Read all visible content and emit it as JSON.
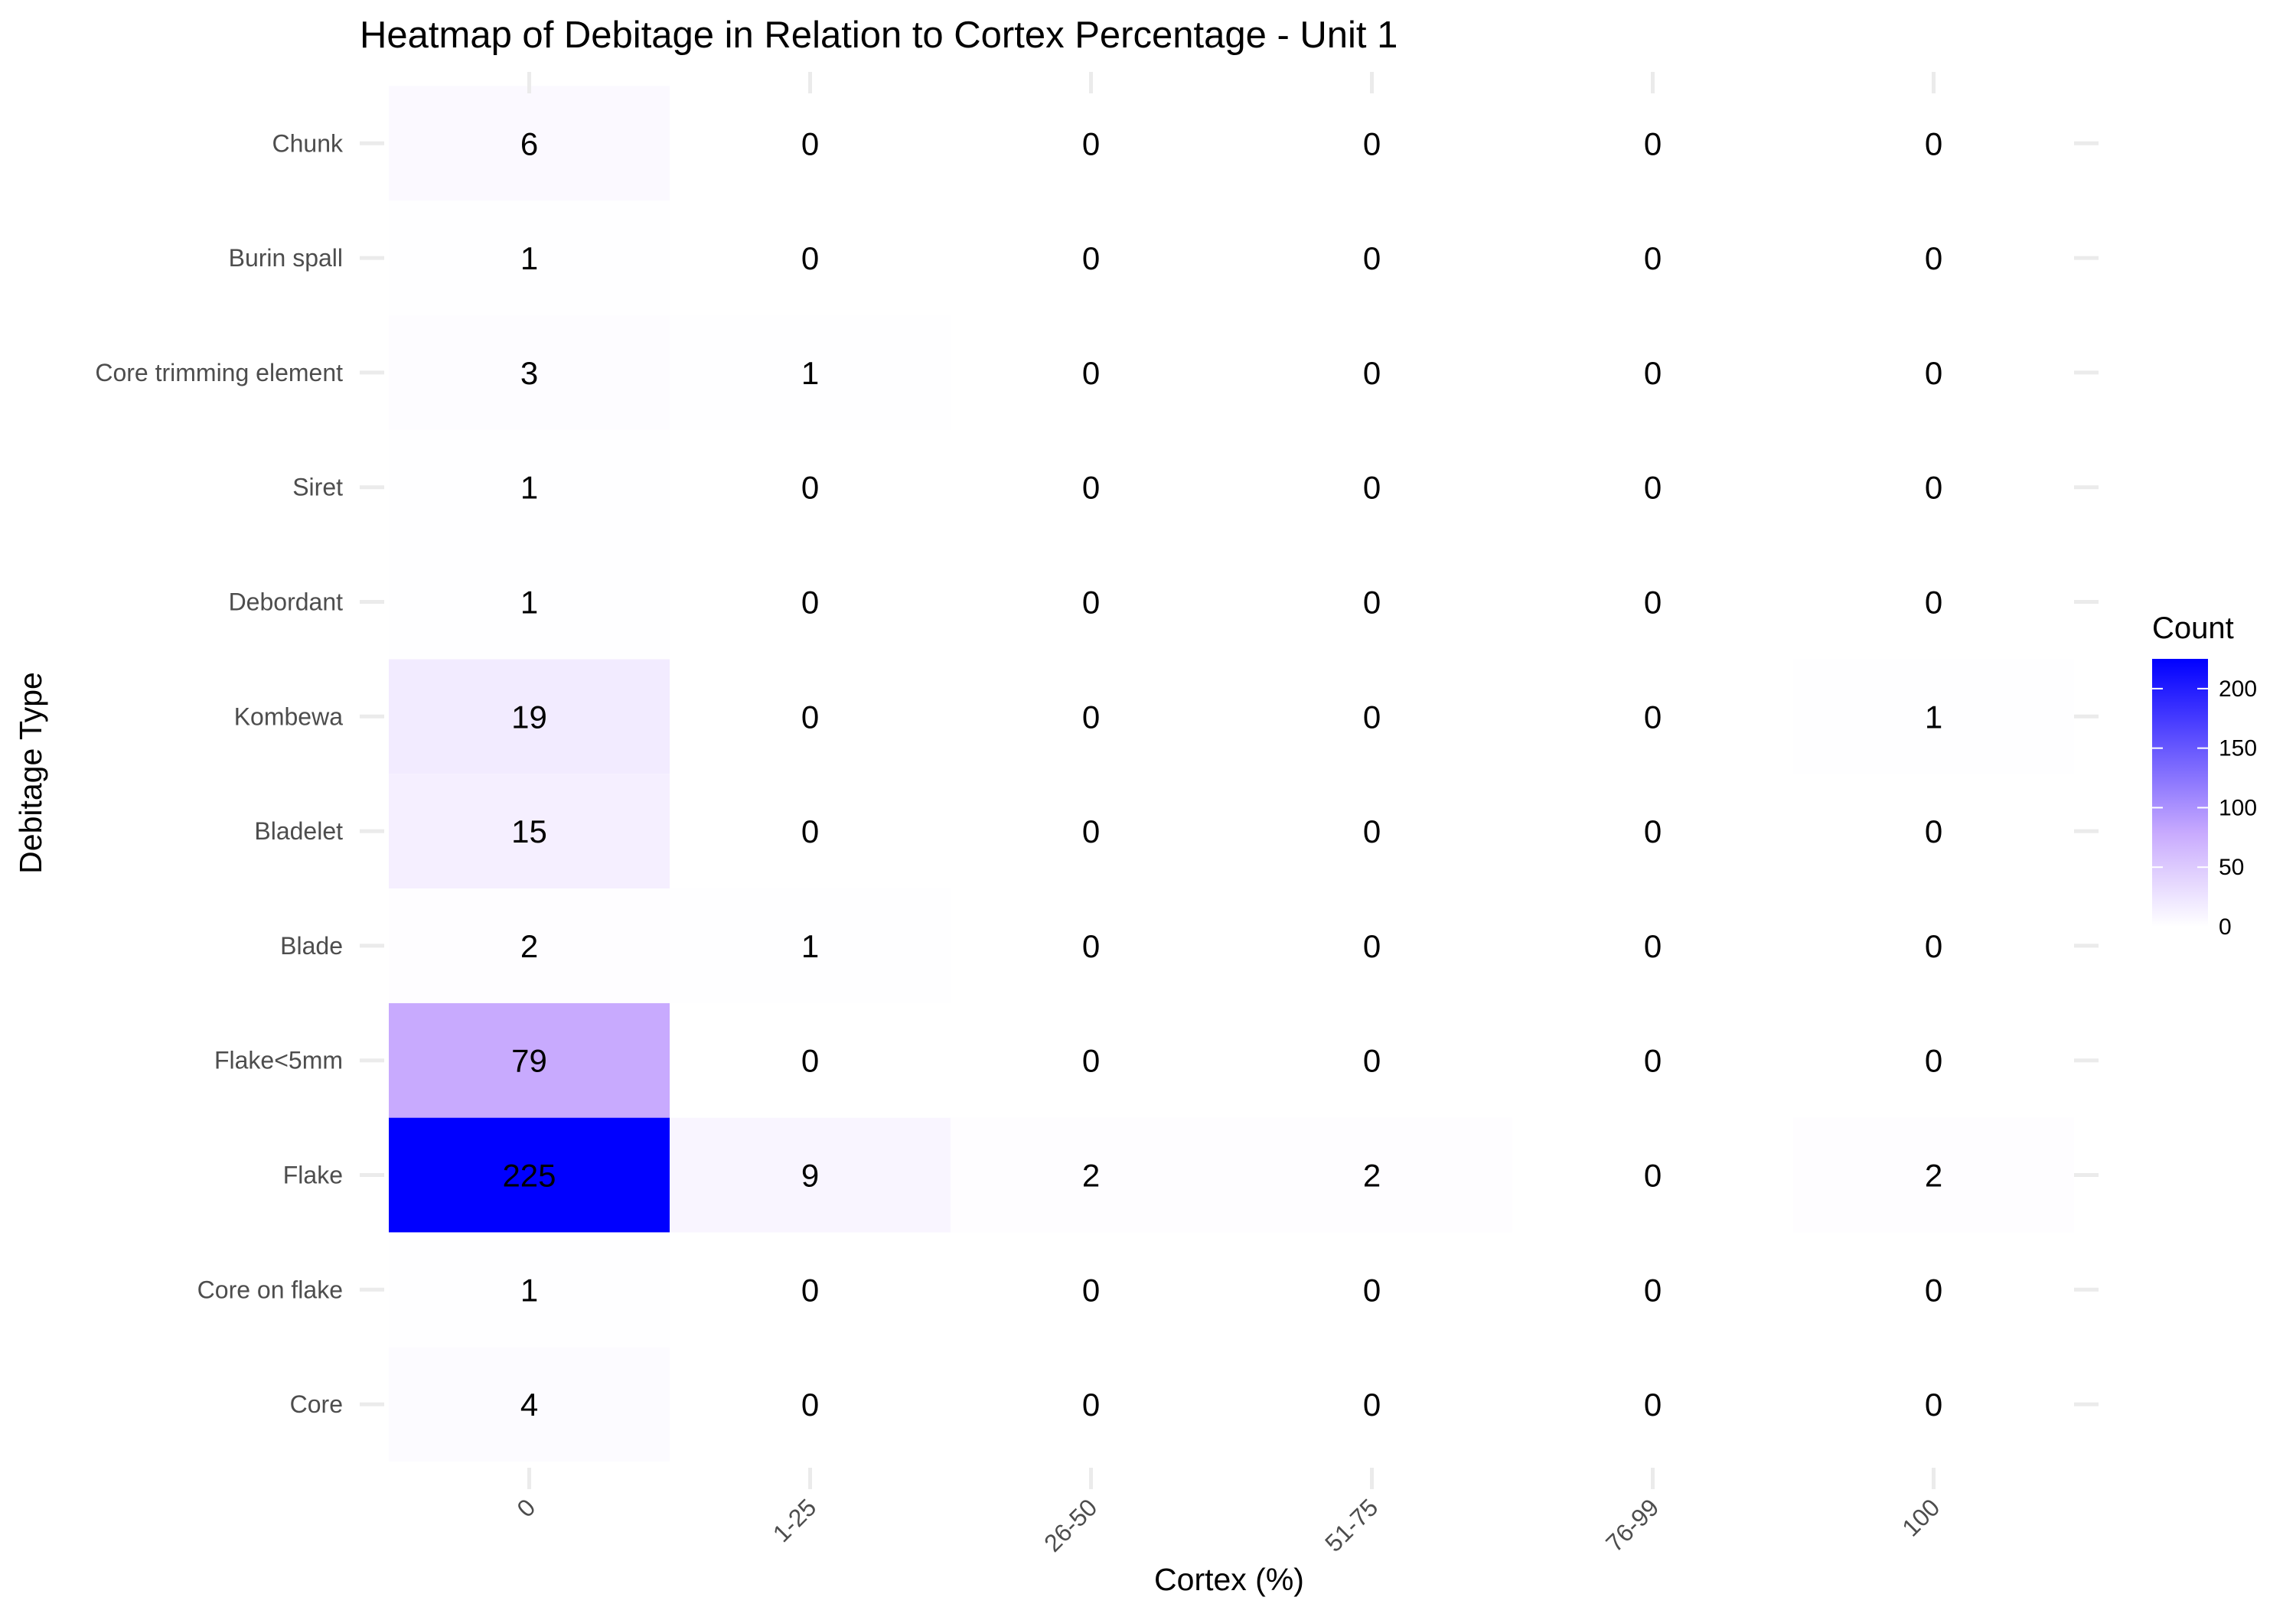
{
  "chart_data": {
    "type": "heatmap",
    "title": "Heatmap of Debitage in Relation to Cortex Percentage - Unit 1",
    "xlabel": "Cortex (%)",
    "ylabel": "Debitage Type",
    "x_categories": [
      "0",
      "1-25",
      "26-50",
      "51-75",
      "76-99",
      "100"
    ],
    "y_categories": [
      "Core",
      "Core on flake",
      "Flake",
      "Flake<5mm",
      "Blade",
      "Bladelet",
      "Kombewa",
      "Debordant",
      "Siret",
      "Core trimming element",
      "Burin spall",
      "Chunk"
    ],
    "values": [
      [
        4,
        0,
        0,
        0,
        0,
        0
      ],
      [
        1,
        0,
        0,
        0,
        0,
        0
      ],
      [
        225,
        9,
        2,
        2,
        0,
        2
      ],
      [
        79,
        0,
        0,
        0,
        0,
        0
      ],
      [
        2,
        1,
        0,
        0,
        0,
        0
      ],
      [
        15,
        0,
        0,
        0,
        0,
        0
      ],
      [
        19,
        0,
        0,
        0,
        0,
        1
      ],
      [
        1,
        0,
        0,
        0,
        0,
        0
      ],
      [
        1,
        0,
        0,
        0,
        0,
        0
      ],
      [
        3,
        1,
        0,
        0,
        0,
        0
      ],
      [
        1,
        0,
        0,
        0,
        0,
        0
      ],
      [
        6,
        0,
        0,
        0,
        0,
        0
      ]
    ],
    "legend": {
      "title": "Count",
      "position": "right",
      "breaks": [
        0,
        50,
        100,
        150,
        200
      ],
      "range": [
        0,
        225
      ],
      "low_color": "#ffffff",
      "mid_color": "#c8aafe",
      "high_color": "#0000ff"
    },
    "grid": false,
    "x_tick_rotation": -45
  }
}
